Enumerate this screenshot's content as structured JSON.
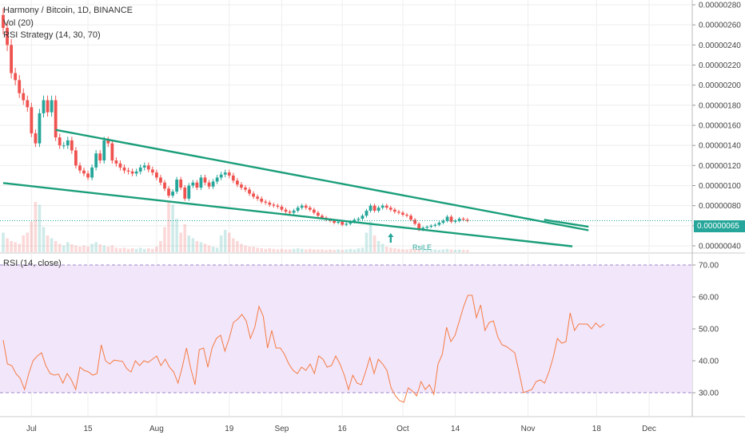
{
  "legend": {
    "symbol_title": "Harmony / Bitcoin, 1D, BINANCE",
    "vol_title": "Vol (20)",
    "strategy_title": "RSI Strategy (14, 30, 70)",
    "rsi_title": "RSI (14, close)"
  },
  "last_price_label": "0.00000065",
  "signal_label": "RsiLE",
  "colors": {
    "up": "#26a69a",
    "down": "#ef5350",
    "trendline": "#1a9e7a",
    "rsi_line": "#f57c42",
    "rsi_band": "#f2e6fb",
    "grid": "#eeeeee"
  },
  "chart_data": [
    {
      "type": "candlestick",
      "title": "Harmony / Bitcoin, 1D, BINANCE",
      "xlabels": [
        "Jul",
        "15",
        "Aug",
        "19",
        "Sep",
        "16",
        "Oct",
        "14",
        "Nov",
        "18",
        "Dec"
      ],
      "ylabels": [
        "0.00000040",
        "0.00000060",
        "0.00000080",
        "0.00000100",
        "0.00000120",
        "0.00000140",
        "0.00000160",
        "0.00000180",
        "0.00000200",
        "0.00000220",
        "0.00000240",
        "0.00000260",
        "0.00000280"
      ],
      "ylim": [
        4e-07,
        2.8e-06
      ],
      "start_date": "2019-06-24",
      "closes": [
        2.57e-06,
        2.4e-06,
        2.12e-06,
        2.05e-06,
        1.92e-06,
        1.85e-06,
        1.78e-06,
        1.52e-06,
        1.42e-06,
        1.72e-06,
        1.85e-06,
        1.73e-06,
        1.85e-06,
        1.48e-06,
        1.4e-06,
        1.4e-06,
        1.45e-06,
        1.35e-06,
        1.2e-06,
        1.15e-06,
        1.12e-06,
        1.08e-06,
        1.18e-06,
        1.32e-06,
        1.25e-06,
        1.45e-06,
        1.42e-06,
        1.25e-06,
        1.22e-06,
        1.18e-06,
        1.15e-06,
        1.14e-06,
        1.12e-06,
        1.14e-06,
        1.18e-06,
        1.2e-06,
        1.16e-06,
        1.13e-06,
        1.08e-06,
        1.03e-06,
        9.7e-07,
        9e-07,
        9.4e-07,
        1.06e-06,
        9.8e-07,
        8.7e-07,
        1e-06,
        1.03e-06,
        9.8e-07,
        1.08e-06,
        1.03e-06,
        9.9e-07,
        1.04e-06,
        1.08e-06,
        1.11e-06,
        1.13e-06,
        1.1e-06,
        1.05e-06,
        1.01e-06,
        9.8e-07,
        9.6e-07,
        9.2e-07,
        8.9e-07,
        8.7e-07,
        8.4e-07,
        8.3e-07,
        8.1e-07,
        8e-07,
        7.9e-07,
        7.6e-07,
        7.4e-07,
        7.3e-07,
        7.5e-07,
        7.8e-07,
        8e-07,
        7.8e-07,
        7.6e-07,
        7.3e-07,
        7e-07,
        6.8e-07,
        6.6e-07,
        6.5e-07,
        6.3e-07,
        6.4e-07,
        6.1e-07,
        6.2e-07,
        6.4e-07,
        6.6e-07,
        6.7e-07,
        7e-07,
        7.5e-07,
        8e-07,
        7.5e-07,
        7.8e-07,
        8e-07,
        7.8e-07,
        7.6e-07,
        7.4e-07,
        7.3e-07,
        7.1e-07,
        7e-07,
        6.6e-07,
        6.2e-07,
        5.6e-07,
        5.8e-07,
        5.9e-07,
        6e-07,
        6.1e-07,
        6.3e-07,
        6.5e-07,
        6.9e-07,
        6.4e-07,
        6.5e-07,
        6.7e-07,
        6.6e-07,
        6.5e-07
      ],
      "volumes": [
        0.35,
        0.25,
        0.2,
        0.18,
        0.15,
        0.3,
        0.35,
        0.55,
        0.9,
        0.85,
        0.45,
        0.3,
        0.25,
        0.2,
        0.15,
        0.12,
        0.18,
        0.14,
        0.12,
        0.1,
        0.12,
        0.1,
        0.15,
        0.18,
        0.14,
        0.12,
        0.1,
        0.12,
        0.08,
        0.07,
        0.08,
        0.06,
        0.07,
        0.06,
        0.08,
        0.06,
        0.07,
        0.06,
        0.1,
        0.2,
        0.45,
        0.9,
        0.85,
        0.6,
        0.35,
        0.5,
        0.3,
        0.25,
        0.2,
        0.18,
        0.15,
        0.12,
        0.1,
        0.08,
        0.3,
        0.4,
        0.35,
        0.25,
        0.2,
        0.15,
        0.12,
        0.1,
        0.1,
        0.08,
        0.07,
        0.06,
        0.07,
        0.06,
        0.05,
        0.06,
        0.05,
        0.05,
        0.06,
        0.07,
        0.06,
        0.05,
        0.06,
        0.05,
        0.05,
        0.05,
        0.04,
        0.05,
        0.04,
        0.05,
        0.04,
        0.05,
        0.06,
        0.05,
        0.07,
        0.08,
        0.35,
        0.55,
        0.3,
        0.2,
        0.15,
        0.1,
        0.08,
        0.07,
        0.06,
        0.05,
        0.05,
        0.06,
        0.06,
        0.05,
        0.04,
        0.04,
        0.05,
        0.05,
        0.04,
        0.05,
        0.06,
        0.05,
        0.04,
        0.05,
        0.04,
        0.04
      ],
      "trendlines": [
        {
          "from": [
            "2019-07-07",
            1.555e-06
          ],
          "to": [
            "2019-11-16",
            5.55e-07
          ]
        },
        {
          "from": [
            "2019-06-24",
            1.025e-06
          ],
          "to": [
            "2019-11-12",
            3.95e-07
          ]
        },
        {
          "from": [
            "2019-11-05",
            6.6e-07
          ],
          "to": [
            "2019-11-16",
            5.9e-07
          ]
        }
      ],
      "signals": [
        {
          "date": "2019-09-28",
          "label": "RsiLE"
        }
      ],
      "last_price": 6.5e-07
    },
    {
      "type": "line",
      "title": "RSI (14, close)",
      "ylabels": [
        "30.00",
        "40.00",
        "50.00",
        "60.00",
        "70.00"
      ],
      "ylim": [
        25,
        72
      ],
      "band": [
        30,
        70
      ],
      "values": [
        46.5,
        39,
        38.5,
        36,
        34.5,
        31,
        36,
        40,
        41.5,
        42.5,
        38.5,
        36,
        35.5,
        35.8,
        33,
        36,
        34,
        31,
        38,
        37,
        36.5,
        35.5,
        36,
        45,
        40,
        39,
        40.2,
        40,
        39.8,
        37.5,
        36.5,
        40,
        38.5,
        40,
        39.5,
        40.5,
        41.5,
        38.5,
        40.5,
        38,
        36.5,
        33,
        38,
        44,
        37.5,
        32.5,
        43.5,
        44,
        38,
        44,
        47,
        48,
        43,
        47,
        52,
        53,
        54.5,
        52.5,
        47,
        50.5,
        57,
        54,
        44,
        49.5,
        44,
        44,
        42,
        39,
        37,
        36,
        38,
        37,
        39,
        36,
        41.5,
        40.5,
        38,
        38.5,
        41.5,
        39,
        35.5,
        31,
        35.5,
        33,
        32.5,
        36.5,
        41,
        36,
        40.5,
        39,
        37,
        31.5,
        29,
        27.5,
        27,
        31.5,
        30.5,
        29,
        33.5,
        31,
        32.5,
        29.5,
        39,
        42,
        50.5,
        46,
        48,
        52.5,
        57,
        60.5,
        60.5,
        53.5,
        57.5,
        49.5,
        52,
        52.5,
        47.5,
        45,
        44.5,
        43.5,
        42.5,
        36.5,
        30,
        30.5,
        31,
        33.5,
        34,
        33,
        36.5,
        41,
        47,
        45.5,
        46,
        55,
        49.5,
        51.5,
        51.5,
        51.5,
        50,
        51.8,
        50.5,
        51.5
      ]
    }
  ]
}
